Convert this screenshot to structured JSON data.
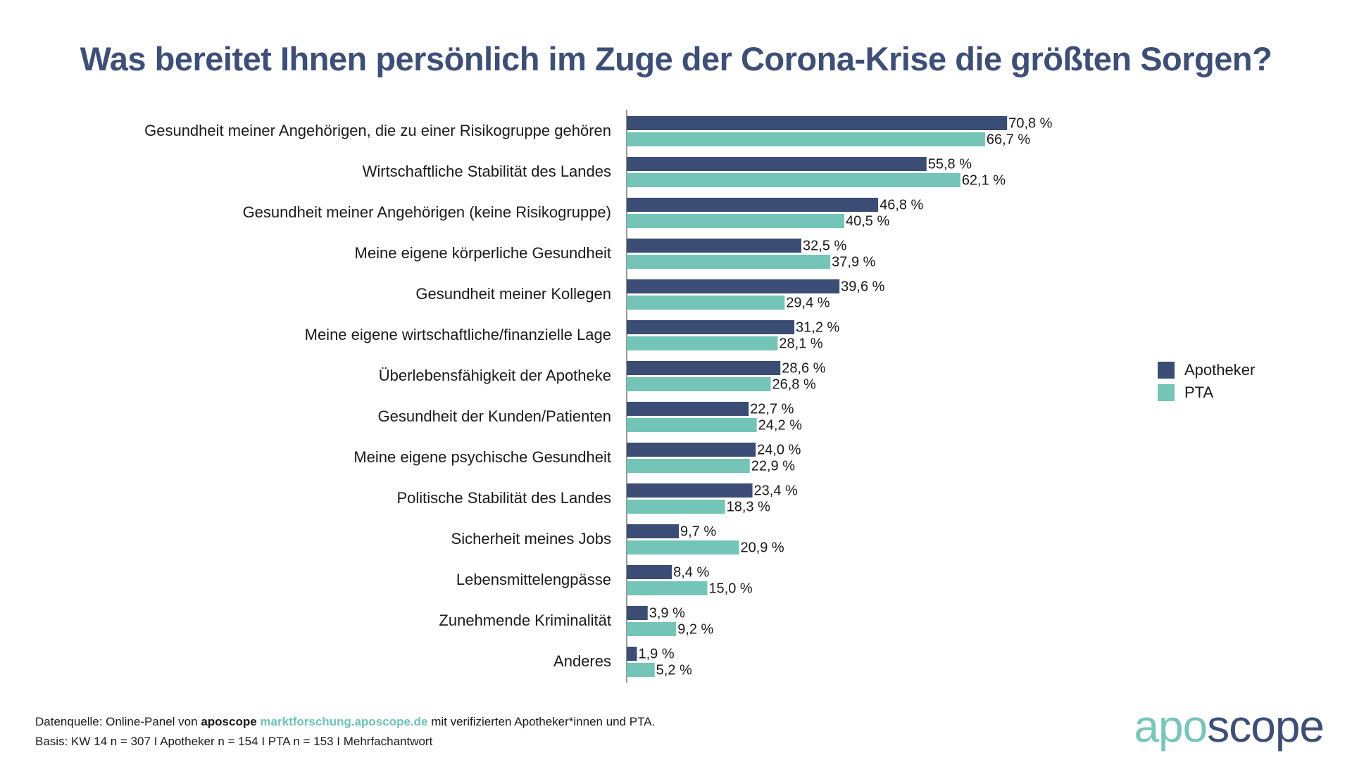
{
  "title": "Was bereitet Ihnen persönlich im Zuge der Corona-Krise die größten Sorgen?",
  "colors": {
    "apotheker": "#3b4d75",
    "pta": "#74c4b8",
    "title": "#3d4f76"
  },
  "legend": [
    {
      "key": "apotheker",
      "label": "Apotheker"
    },
    {
      "key": "pta",
      "label": "PTA"
    }
  ],
  "chart_data": {
    "type": "bar",
    "orientation": "horizontal",
    "categories": [
      "Gesundheit meiner Angehörigen, die zu einer Risikogruppe gehören",
      "Wirtschaftliche Stabilität des Landes",
      "Gesundheit meiner Angehörigen (keine Risikogruppe)",
      "Meine eigene körperliche Gesundheit",
      "Gesundheit meiner Kollegen",
      "Meine eigene wirtschaftliche/finanzielle Lage",
      "Überlebensfähigkeit der Apotheke",
      "Gesundheit der Kunden/Patienten",
      "Meine eigene psychische Gesundheit",
      "Politische Stabilität des Landes",
      "Sicherheit meines Jobs",
      "Lebensmittelengpässe",
      "Zunehmende Kriminalität",
      "Anderes"
    ],
    "series": [
      {
        "name": "Apotheker",
        "values": [
          70.8,
          55.8,
          46.8,
          32.5,
          39.6,
          31.2,
          28.6,
          22.7,
          24.0,
          23.4,
          9.7,
          8.4,
          3.9,
          1.9
        ],
        "labels": [
          "70,8 %",
          "55,8 %",
          "46,8 %",
          "32,5 %",
          "39,6 %",
          "31,2 %",
          "28,6 %",
          "22,7 %",
          "24,0 %",
          "23,4 %",
          "9,7 %",
          "8,4 %",
          "3,9 %",
          "1,9 %"
        ]
      },
      {
        "name": "PTA",
        "values": [
          66.7,
          62.1,
          40.5,
          37.9,
          29.4,
          28.1,
          26.8,
          24.2,
          22.9,
          18.3,
          20.9,
          15.0,
          9.2,
          5.2
        ],
        "labels": [
          "66,7 %",
          "62,1 %",
          "40,5 %",
          "37,9 %",
          "29,4 %",
          "28,1 %",
          "26,8 %",
          "24,2 %",
          "22,9 %",
          "18,3 %",
          "20,9 %",
          "15,0 %",
          "9,2 %",
          "5,2 %"
        ]
      }
    ],
    "xlim": [
      0,
      100
    ],
    "grid": false,
    "legend_position": "right"
  },
  "footer": {
    "line1_prefix": "Datenquelle: Online-Panel von ",
    "line1_brand": "aposcope",
    "line1_link": "marktforschung.aposcope.de",
    "line1_suffix": " mit verifizierten Apotheker*innen und PTA.",
    "line2": "Basis: KW 14 n = 307 I Apotheker n = 154 I PTA n = 153 I Mehrfachantwort"
  },
  "logo": {
    "part1": "apo",
    "part2": "scope"
  }
}
